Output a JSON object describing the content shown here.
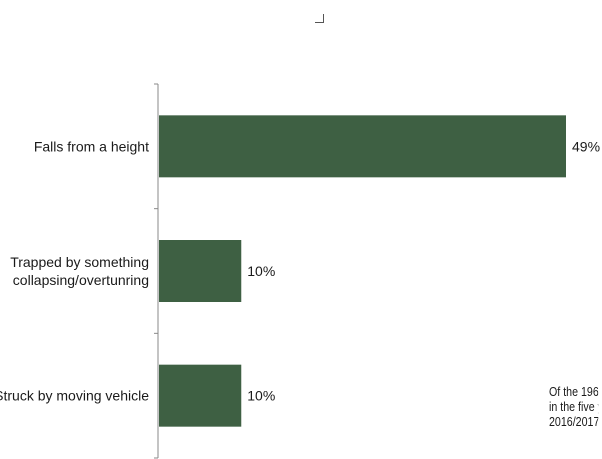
{
  "chart_data": {
    "type": "bar",
    "orientation": "horizontal",
    "categories": [
      [
        "Falls from a height"
      ],
      [
        "Trapped by something",
        "collapsing/overtunring"
      ],
      [
        "Struck by moving vehicle"
      ]
    ],
    "values": [
      49,
      10,
      10
    ],
    "value_labels": [
      "49%",
      "10%",
      "10%"
    ],
    "bar_color": "#3e6043",
    "xlim": [
      0,
      49
    ],
    "grid": false,
    "legend": "none"
  },
  "annotation": {
    "lines": [
      "Of the 196",
      "in the five y",
      "2016/2017"
    ]
  }
}
